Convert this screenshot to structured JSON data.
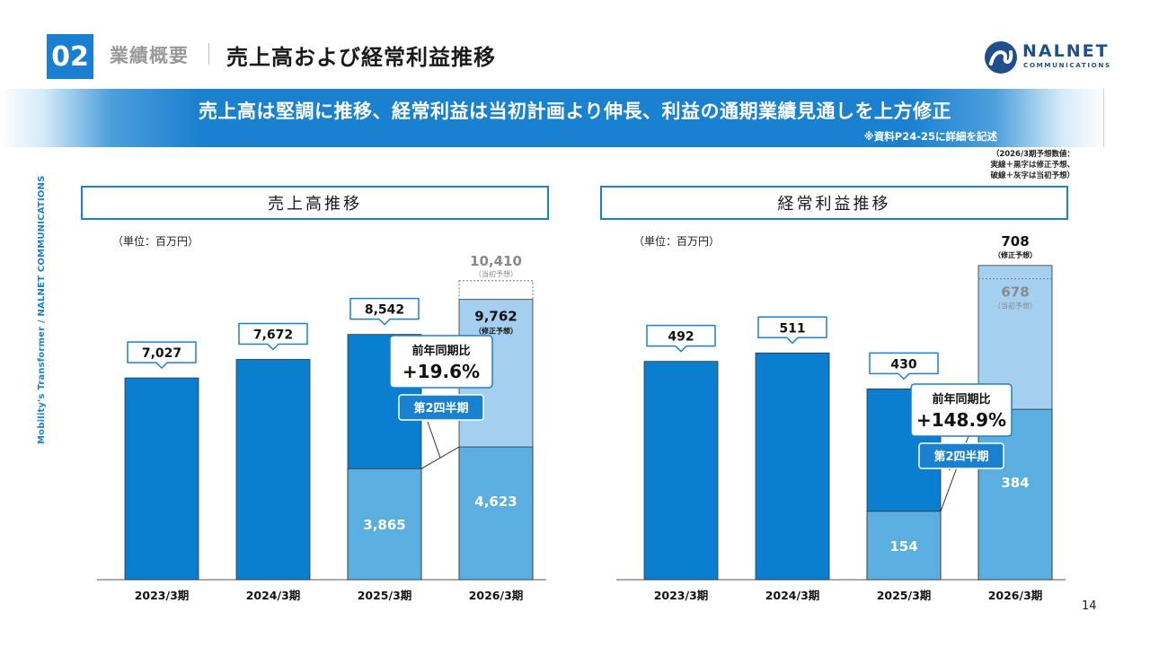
{
  "header": {
    "section_number": "02",
    "section_name": "業績概要",
    "title": "売上高および経常利益推移"
  },
  "logo": {
    "name": "NALNET",
    "sub": "COMMUNICATIONS"
  },
  "banner": {
    "text": "売上高は堅調に推移、経常利益は当初計画より伸長、利益の通期業績見通しを上方修正",
    "note": "※資料P24-25に詳細を記述"
  },
  "forecast_note": {
    "line1": "（2026/3期予想数値：",
    "line2": "実線＋黒字は修正予想、",
    "line3": "破線＋灰字は当初予想）"
  },
  "side_text": "Mobility's Transformer / NALNET COMMUNICATIONS",
  "page_number": "14",
  "colors": {
    "dark": "#0a7fd0",
    "light": "#5aaee0",
    "pale": "#a4cfee",
    "accent": "#1a80d0"
  },
  "chart_data": [
    {
      "type": "bar",
      "title": "売上高推移",
      "unit": "（単位：百万円）",
      "categories": [
        "2023/3期",
        "2024/3期",
        "2025/3期",
        "2026/3期"
      ],
      "ylim": [
        0,
        11500
      ],
      "values": [
        7027,
        7672,
        8542,
        9762
      ],
      "value_labels": [
        "7,027",
        "7,672",
        "8,542",
        "9,762"
      ],
      "series": [
        {
          "name": "第2四半期累計",
          "values": [
            null,
            null,
            3865,
            4623
          ],
          "labels": [
            "",
            "",
            "3,865",
            "4,623"
          ]
        }
      ],
      "revised_forecast": {
        "value": 9762,
        "label": "9,762",
        "tag": "（修正予想）"
      },
      "initial_forecast": {
        "value": 10410,
        "label": "10,410",
        "tag": "（当初予想）"
      },
      "callout": {
        "title": "前年同期比",
        "value": "+19.6%",
        "tag": "第2四半期"
      }
    },
    {
      "type": "bar",
      "title": "経常利益推移",
      "unit": "（単位：百万円）",
      "categories": [
        "2023/3期",
        "2024/3期",
        "2025/3期",
        "2026/3期"
      ],
      "ylim": [
        0,
        825
      ],
      "values": [
        492,
        511,
        430,
        708
      ],
      "value_labels": [
        "492",
        "511",
        "430",
        "708"
      ],
      "series": [
        {
          "name": "第2四半期累計",
          "values": [
            null,
            null,
            154,
            384
          ],
          "labels": [
            "",
            "",
            "154",
            "384"
          ]
        }
      ],
      "revised_forecast": {
        "value": 708,
        "label": "708",
        "tag": "（修正予想）"
      },
      "initial_forecast": {
        "value": 678,
        "label": "678",
        "tag": "（当初予想）"
      },
      "callout": {
        "title": "前年同期比",
        "value": "+148.9%",
        "tag": "第2四半期"
      }
    }
  ]
}
